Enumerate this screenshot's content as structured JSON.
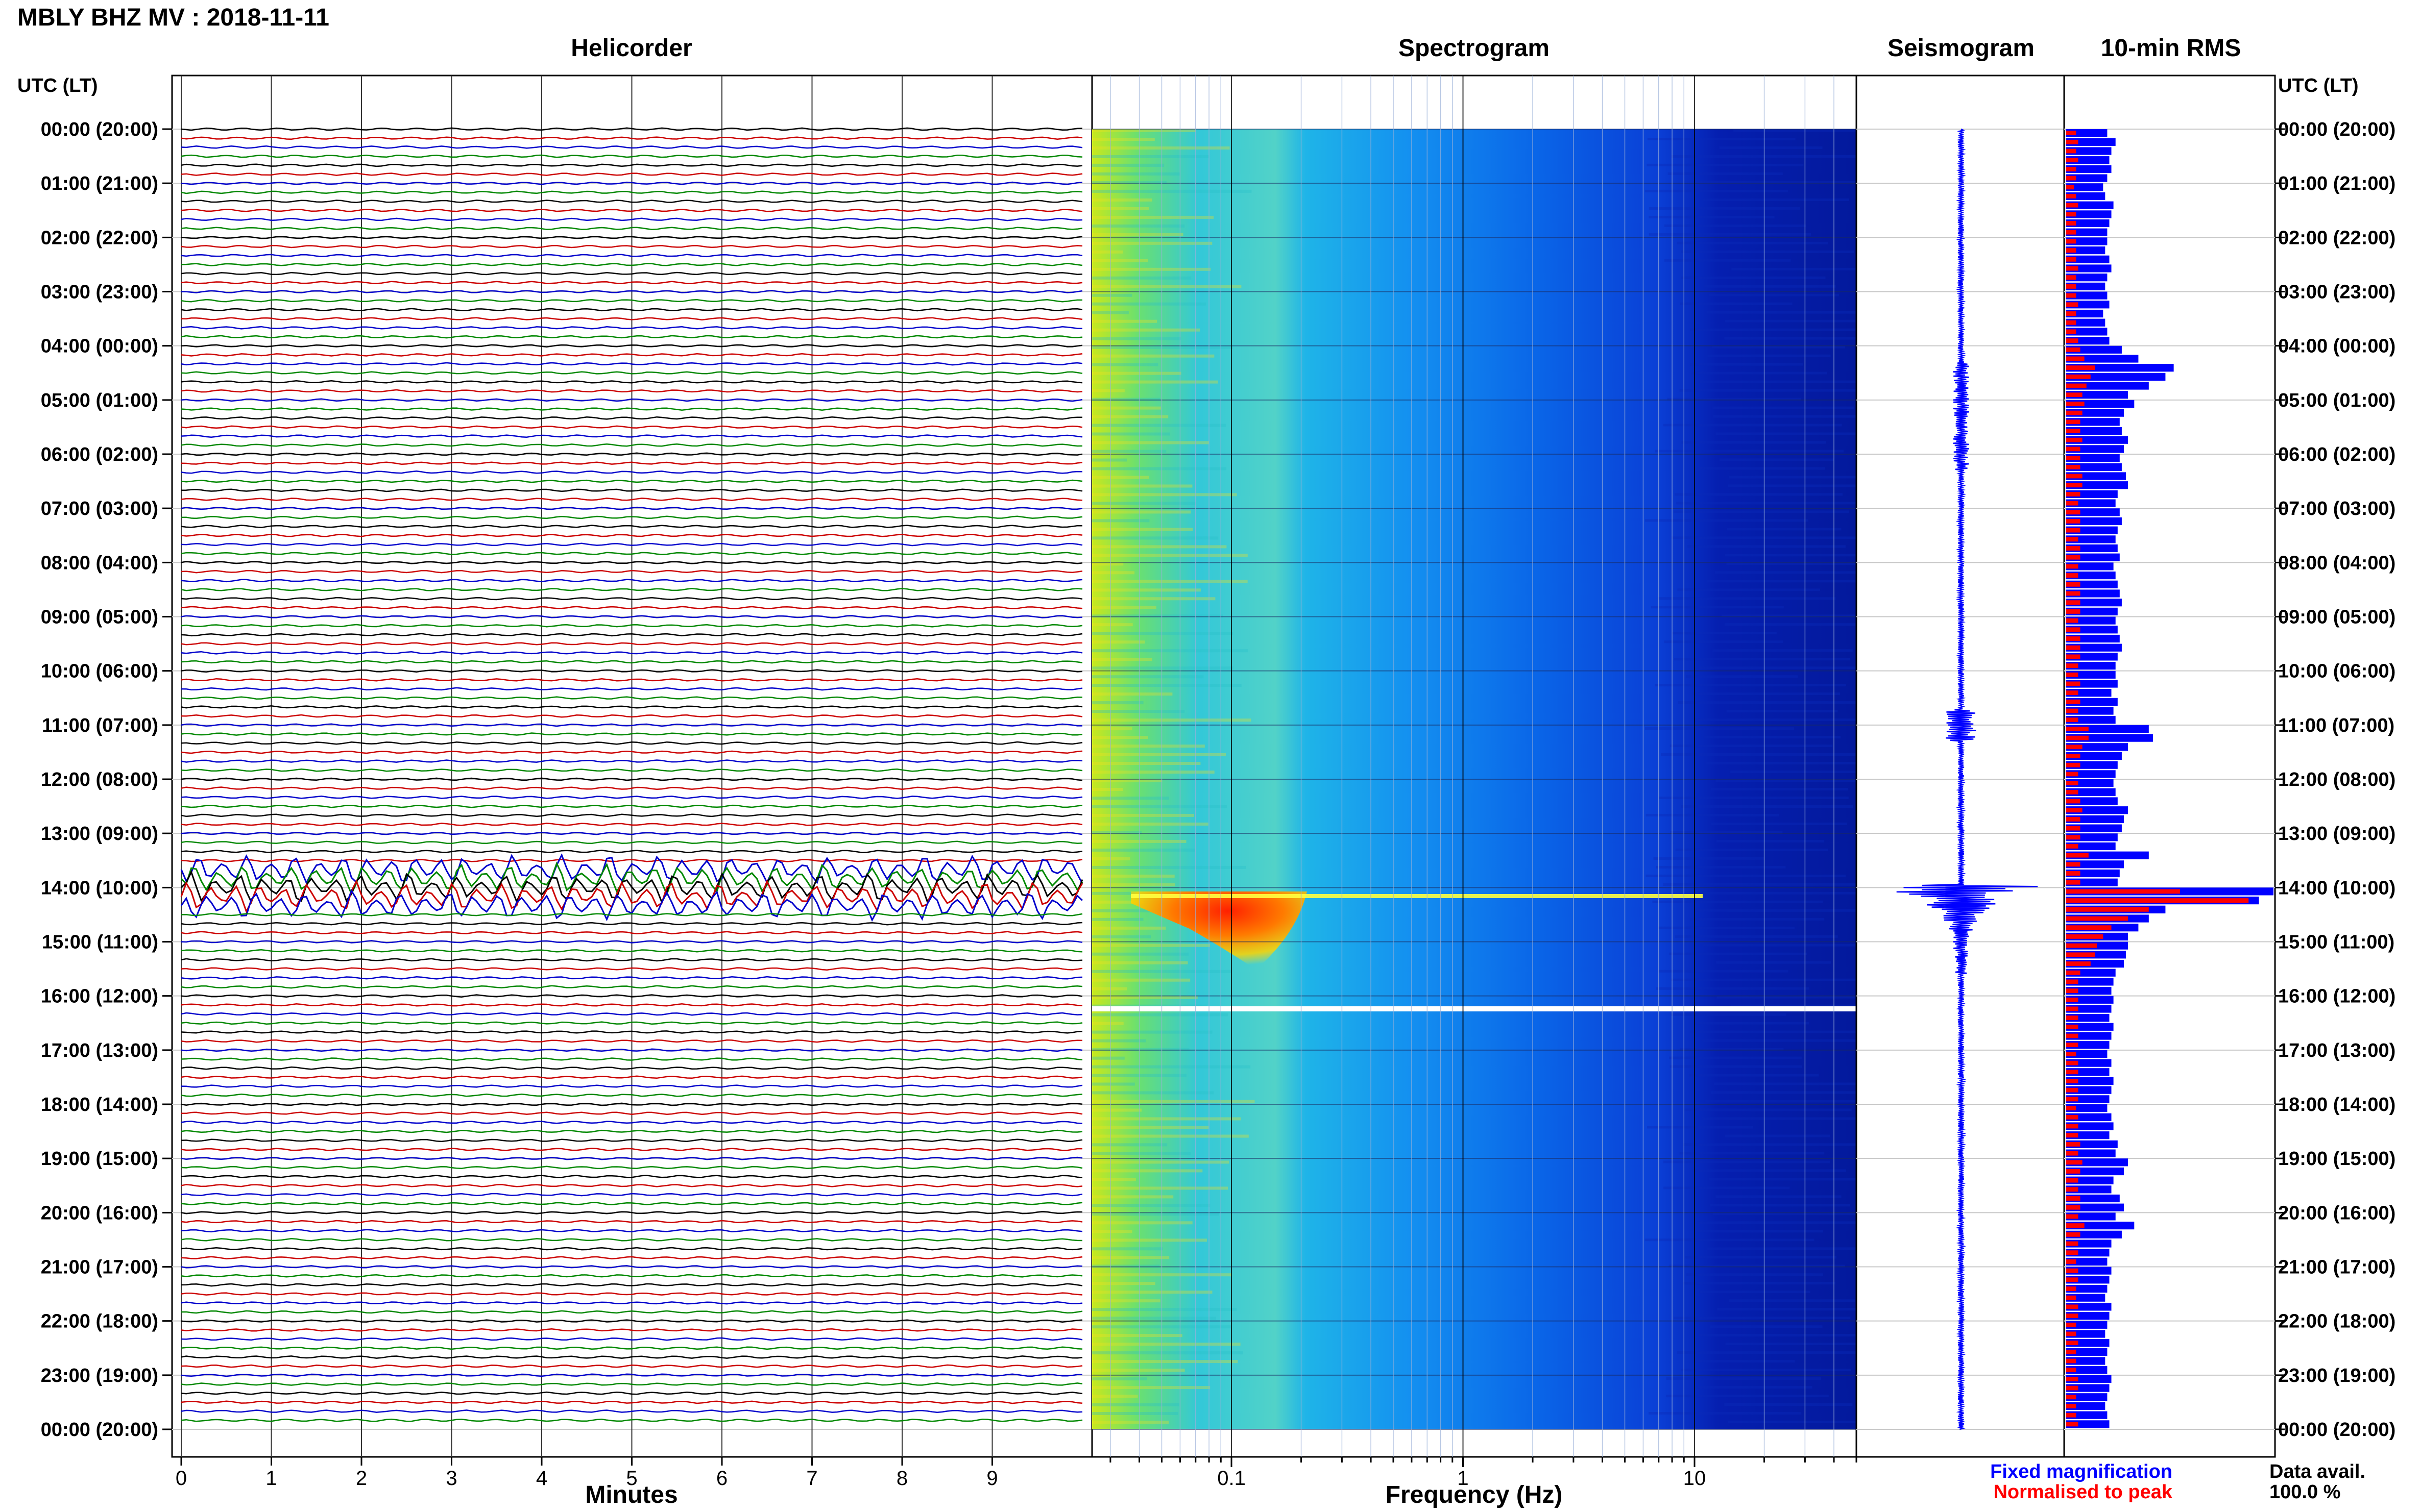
{
  "header": {
    "title": "MBLY BHZ MV : 2018-11-11",
    "utc_label_left": "UTC (LT)",
    "utc_label_right": "UTC (LT)"
  },
  "panels": {
    "helicorder_title": "Helicorder",
    "spectrogram_title": "Spectrogram",
    "seismogram_title": "Seismogram",
    "rms_title": "10-min RMS"
  },
  "axes": {
    "minutes_label": "Minutes",
    "frequency_label": "Frequency (Hz)",
    "minute_ticks": [
      "0",
      "1",
      "2",
      "3",
      "4",
      "5",
      "6",
      "7",
      "8",
      "9"
    ],
    "frequency_ticks": [
      "0.1",
      "1",
      "10"
    ]
  },
  "legend": {
    "fixed": "Fixed magnification",
    "normalised": "Normalised to peak",
    "fixed_color": "#0000ff",
    "normalised_color": "#ff0000"
  },
  "data_avail": {
    "label": "Data avail.",
    "value": "100.0 %"
  },
  "time_labels": [
    "00:00 (20:00)",
    "01:00 (21:00)",
    "02:00 (22:00)",
    "03:00 (23:00)",
    "04:00 (00:00)",
    "05:00 (01:00)",
    "06:00 (02:00)",
    "07:00 (03:00)",
    "08:00 (04:00)",
    "09:00 (05:00)",
    "10:00 (06:00)",
    "11:00 (07:00)",
    "12:00 (08:00)",
    "13:00 (09:00)",
    "14:00 (10:00)",
    "15:00 (11:00)",
    "16:00 (12:00)",
    "17:00 (13:00)",
    "18:00 (14:00)",
    "19:00 (15:00)",
    "20:00 (16:00)",
    "21:00 (17:00)",
    "22:00 (18:00)",
    "23:00 (19:00)",
    "00:00 (20:00)"
  ],
  "chart_data": {
    "type": "heatmap",
    "station": "MBLY BHZ MV",
    "date": "2018-11-11",
    "helicorder": {
      "x_range_minutes": [
        0,
        10
      ],
      "hours": 24,
      "trace_colors": [
        "#000000",
        "#cc0000",
        "#0000cc",
        "#008800"
      ],
      "event_hour_utc": 14.0
    },
    "spectrogram": {
      "x_scale": "log",
      "x_range_hz": [
        0.025,
        50
      ],
      "colormap": [
        "#00008b",
        "#0000ff",
        "#0080ff",
        "#00e0e0",
        "#80ff80",
        "#ffff00",
        "#ff8000",
        "#ff0000"
      ],
      "gap_hour_utc": 16.2
    },
    "rms_10min": {
      "fixed_magnification": [
        0.2,
        0.24,
        0.22,
        0.21,
        0.22,
        0.2,
        0.18,
        0.19,
        0.23,
        0.22,
        0.21,
        0.2,
        0.2,
        0.19,
        0.21,
        0.22,
        0.2,
        0.19,
        0.2,
        0.21,
        0.18,
        0.19,
        0.2,
        0.21,
        0.27,
        0.35,
        0.52,
        0.48,
        0.4,
        0.3,
        0.33,
        0.28,
        0.26,
        0.27,
        0.3,
        0.28,
        0.26,
        0.27,
        0.29,
        0.3,
        0.25,
        0.24,
        0.26,
        0.27,
        0.25,
        0.24,
        0.25,
        0.26,
        0.23,
        0.24,
        0.25,
        0.26,
        0.27,
        0.25,
        0.24,
        0.25,
        0.26,
        0.27,
        0.25,
        0.24,
        0.24,
        0.25,
        0.22,
        0.25,
        0.23,
        0.24,
        0.4,
        0.42,
        0.3,
        0.27,
        0.25,
        0.24,
        0.23,
        0.24,
        0.25,
        0.3,
        0.28,
        0.27,
        0.25,
        0.24,
        0.4,
        0.28,
        0.26,
        0.25,
        1.0,
        0.93,
        0.48,
        0.4,
        0.35,
        0.3,
        0.3,
        0.29,
        0.28,
        0.24,
        0.23,
        0.22,
        0.23,
        0.22,
        0.21,
        0.23,
        0.22,
        0.21,
        0.2,
        0.22,
        0.21,
        0.23,
        0.22,
        0.21,
        0.2,
        0.22,
        0.23,
        0.21,
        0.25,
        0.24,
        0.3,
        0.28,
        0.23,
        0.22,
        0.26,
        0.28,
        0.24,
        0.33,
        0.27,
        0.22,
        0.21,
        0.2,
        0.22,
        0.21,
        0.2,
        0.19,
        0.22,
        0.21,
        0.2,
        0.19,
        0.21,
        0.2,
        0.19,
        0.2,
        0.22,
        0.21,
        0.2,
        0.19,
        0.2,
        0.21
      ],
      "normalised_to_peak": [
        0.05,
        0.06,
        0.05,
        0.06,
        0.05,
        0.05,
        0.04,
        0.05,
        0.06,
        0.05,
        0.05,
        0.05,
        0.05,
        0.05,
        0.05,
        0.06,
        0.05,
        0.05,
        0.05,
        0.06,
        0.05,
        0.05,
        0.05,
        0.06,
        0.07,
        0.09,
        0.14,
        0.12,
        0.1,
        0.08,
        0.09,
        0.08,
        0.07,
        0.07,
        0.08,
        0.07,
        0.07,
        0.07,
        0.08,
        0.08,
        0.07,
        0.06,
        0.07,
        0.07,
        0.07,
        0.06,
        0.07,
        0.07,
        0.06,
        0.06,
        0.07,
        0.07,
        0.07,
        0.07,
        0.06,
        0.07,
        0.07,
        0.07,
        0.07,
        0.06,
        0.06,
        0.07,
        0.06,
        0.07,
        0.06,
        0.06,
        0.11,
        0.11,
        0.08,
        0.07,
        0.07,
        0.06,
        0.06,
        0.06,
        0.07,
        0.08,
        0.07,
        0.07,
        0.07,
        0.06,
        0.11,
        0.07,
        0.07,
        0.07,
        0.55,
        0.88,
        0.4,
        0.3,
        0.22,
        0.18,
        0.15,
        0.14,
        0.12,
        0.07,
        0.06,
        0.06,
        0.06,
        0.06,
        0.06,
        0.06,
        0.06,
        0.06,
        0.05,
        0.06,
        0.06,
        0.06,
        0.06,
        0.06,
        0.05,
        0.06,
        0.06,
        0.06,
        0.07,
        0.06,
        0.08,
        0.07,
        0.06,
        0.06,
        0.07,
        0.07,
        0.06,
        0.09,
        0.07,
        0.06,
        0.06,
        0.05,
        0.06,
        0.06,
        0.05,
        0.05,
        0.06,
        0.06,
        0.05,
        0.05,
        0.06,
        0.05,
        0.05,
        0.05,
        0.06,
        0.06,
        0.05,
        0.05,
        0.05,
        0.06
      ]
    }
  }
}
